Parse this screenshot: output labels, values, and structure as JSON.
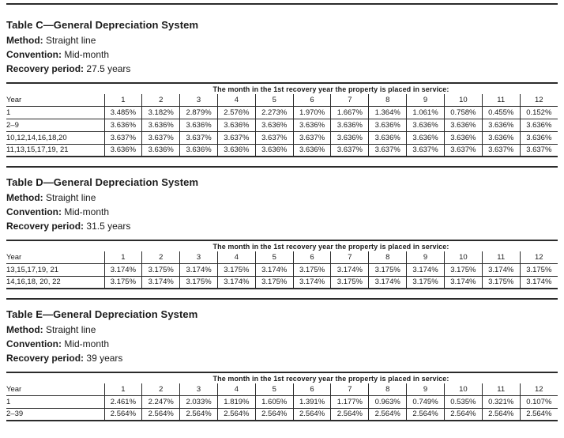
{
  "sections": [
    {
      "id": "table-c",
      "title": "Table C—General Depreciation System",
      "method_label": "Method:",
      "method_value": "Straight line",
      "convention_label": "Convention:",
      "convention_value": "Mid-month",
      "recovery_label": "Recovery period:",
      "recovery_value": "27.5 years",
      "table": {
        "span_header": "The month in the 1st recovery year the property is placed in service:",
        "year_label": "Year",
        "months": [
          "1",
          "2",
          "3",
          "4",
          "5",
          "6",
          "7",
          "8",
          "9",
          "10",
          "11",
          "12"
        ],
        "rows": [
          {
            "label": "1",
            "values": [
              "3.485%",
              "3.182%",
              "2.879%",
              "2.576%",
              "2.273%",
              "1.970%",
              "1.667%",
              "1.364%",
              "1.061%",
              "0.758%",
              "0.455%",
              "0.152%"
            ]
          },
          {
            "label": "2–9",
            "values": [
              "3.636%",
              "3.636%",
              "3.636%",
              "3.636%",
              "3.636%",
              "3.636%",
              "3.636%",
              "3.636%",
              "3.636%",
              "3.636%",
              "3.636%",
              "3.636%"
            ]
          },
          {
            "label": "10,12,14,16,18,20",
            "values": [
              "3.637%",
              "3.637%",
              "3.637%",
              "3.637%",
              "3.637%",
              "3.637%",
              "3.636%",
              "3.636%",
              "3.636%",
              "3.636%",
              "3.636%",
              "3.636%"
            ]
          },
          {
            "label": "11,13,15,17,19, 21",
            "values": [
              "3.636%",
              "3.636%",
              "3.636%",
              "3.636%",
              "3.636%",
              "3.636%",
              "3.637%",
              "3.637%",
              "3.637%",
              "3.637%",
              "3.637%",
              "3.637%"
            ]
          }
        ]
      }
    },
    {
      "id": "table-d",
      "title": "Table D—General Depreciation System",
      "method_label": "Method:",
      "method_value": "Straight line",
      "convention_label": "Convention:",
      "convention_value": "Mid-month",
      "recovery_label": "Recovery period:",
      "recovery_value": "31.5 years",
      "table": {
        "span_header": "The month in the 1st recovery year the property is placed in service:",
        "year_label": "Year",
        "months": [
          "1",
          "2",
          "3",
          "4",
          "5",
          "6",
          "7",
          "8",
          "9",
          "10",
          "11",
          "12"
        ],
        "rows": [
          {
            "label": "13,15,17,19, 21",
            "values": [
              "3.174%",
              "3.175%",
              "3.174%",
              "3.175%",
              "3.174%",
              "3.175%",
              "3.174%",
              "3.175%",
              "3.174%",
              "3.175%",
              "3.174%",
              "3.175%"
            ]
          },
          {
            "label": "14,16,18, 20, 22",
            "values": [
              "3.175%",
              "3.174%",
              "3.175%",
              "3.174%",
              "3.175%",
              "3.174%",
              "3.175%",
              "3.174%",
              "3.175%",
              "3.174%",
              "3.175%",
              "3.174%"
            ]
          }
        ]
      }
    },
    {
      "id": "table-e",
      "title": "Table E—General Depreciation System",
      "method_label": "Method:",
      "method_value": "Straight line",
      "convention_label": "Convention:",
      "convention_value": "Mid-month",
      "recovery_label": "Recovery period:",
      "recovery_value": "39 years",
      "table": {
        "span_header": "The month in the 1st recovery year the property is placed in service:",
        "year_label": "Year",
        "months": [
          "1",
          "2",
          "3",
          "4",
          "5",
          "6",
          "7",
          "8",
          "9",
          "10",
          "11",
          "12"
        ],
        "rows": [
          {
            "label": "1",
            "values": [
              "2.461%",
              "2.247%",
              "2.033%",
              "1.819%",
              "1.605%",
              "1.391%",
              "1.177%",
              "0.963%",
              "0.749%",
              "0.535%",
              "0.321%",
              "0.107%"
            ]
          },
          {
            "label": "2–39",
            "values": [
              "2.564%",
              "2.564%",
              "2.564%",
              "2.564%",
              "2.564%",
              "2.564%",
              "2.564%",
              "2.564%",
              "2.564%",
              "2.564%",
              "2.564%",
              "2.564%"
            ]
          }
        ]
      }
    }
  ]
}
